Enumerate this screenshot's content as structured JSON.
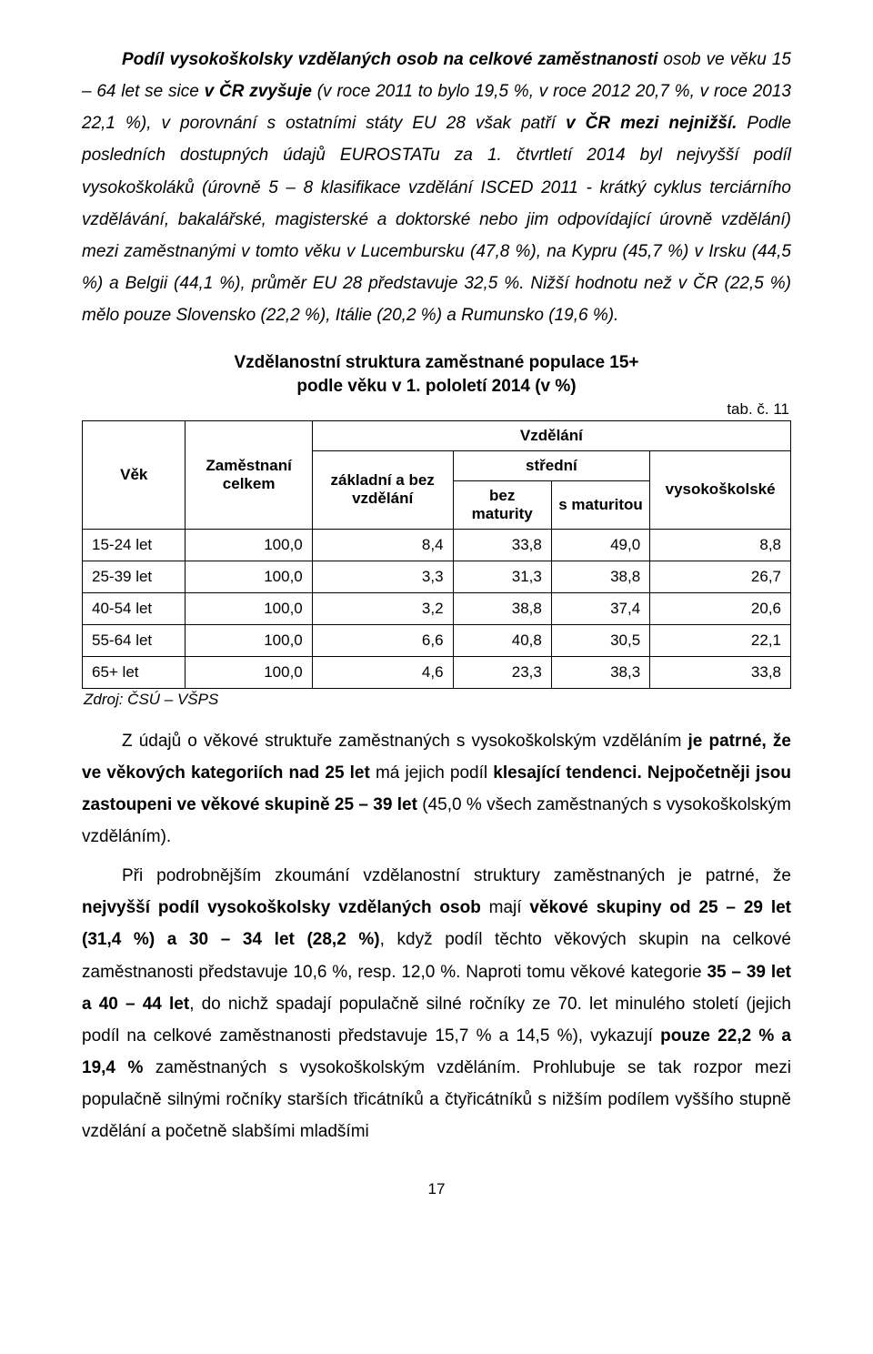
{
  "page_number": "17",
  "paragraphs": {
    "p1_a": "Podíl vysokoškolsky vzdělaných osob na celkové zaměstnanosti",
    "p1_b": " osob ve věku 15 – 64 let se sice ",
    "p1_c": "v ČR zvyšuje",
    "p1_d": " (v roce 2011 to bylo 19,5 %, v roce 2012 20,7 %, v roce 2013 22,1 %), v porovnání s ostatními státy EU 28 však patří ",
    "p1_e": "v ČR mezi nejnižší.",
    "p1_f": " Podle posledních dostupných údajů EUROSTATu za 1. čtvrtletí 2014 byl nejvyšší podíl vysokoškoláků (úrovně 5 – 8 klasifikace vzdělání ISCED 2011 - krátký cyklus terciárního vzdělávání, bakalářské, magisterské a doktorské nebo jim odpovídající úrovně vzdělání) mezi zaměstnanými v tomto věku v Lucembursku (47,8 %), na Kypru (45,7 %) v Irsku (44,5 %) a Belgii (44,1 %), průměr EU 28 představuje 32,5 %. Nižší hodnotu než v ČR (22,5 %) mělo pouze Slovensko (22,2 %), Itálie (20,2 %) a Rumunsko (19,6 %).",
    "p2_a": "Z údajů o věkové struktuře zaměstnaných s vysokoškolským vzděláním ",
    "p2_b": "je patrné, že ve věkových kategoriích nad 25 let",
    "p2_c": " má jejich podíl ",
    "p2_d": "klesající tendenci. Nejpočetněji jsou zastoupeni ve věkové skupině 25 – 39 let",
    "p2_e": " (45,0 % všech zaměstnaných s vysokoškolským vzděláním).",
    "p3_a": "Při podrobnějším zkoumání vzdělanostní struktury zaměstnaných je patrné, že ",
    "p3_b": "nejvyšší podíl vysokoškolsky vzdělaných osob",
    "p3_c": " mají ",
    "p3_d": "věkové skupiny od 25 – 29 let (31,4 %) a 30 – 34 let (28,2 %)",
    "p3_e": ", když podíl těchto věkových skupin na celkové zaměstnanosti představuje 10,6 %, resp. 12,0 %. Naproti tomu věkové kategorie ",
    "p3_f": "35 – 39 let a 40 – 44 let",
    "p3_g": ", do nichž spadají populačně silné ročníky ze 70. let minulého století (jejich podíl na celkové zaměstnanosti představuje 15,7 % a 14,5 %), vykazují ",
    "p3_h": "pouze 22,2 % a 19,4 %",
    "p3_i": " zaměstnaných s vysokoškolským vzděláním. Prohlubuje se tak rozpor mezi populačně silnými ročníky starších třicátníků a čtyřicátníků s nižším podílem vyššího stupně vzdělání a početně slabšími mladšími"
  },
  "table": {
    "title_line1": "Vzdělanostní struktura zaměstnané populace 15+",
    "title_line2": "podle věku v 1. pololetí 2014 (v %)",
    "tab_label": "tab. č. 11",
    "headers": {
      "vek": "Věk",
      "zamestnani": "Zaměstnaní celkem",
      "vzdelani": "Vzdělání",
      "zakladni": "základní a bez vzdělání",
      "stredni": "střední",
      "bez_maturity": "bez maturity",
      "s_maturitou": "s maturitou",
      "vysokoskolske": "vysokoškolské"
    },
    "rows": [
      {
        "vek": "15-24 let",
        "zam": "100,0",
        "zak": "8,4",
        "bez": "33,8",
        "s": "49,0",
        "vys": "8,8"
      },
      {
        "vek": "25-39 let",
        "zam": "100,0",
        "zak": "3,3",
        "bez": "31,3",
        "s": "38,8",
        "vys": "26,7"
      },
      {
        "vek": "40-54 let",
        "zam": "100,0",
        "zak": "3,2",
        "bez": "38,8",
        "s": "37,4",
        "vys": "20,6"
      },
      {
        "vek": "55-64 let",
        "zam": "100,0",
        "zak": "6,6",
        "bez": "40,8",
        "s": "30,5",
        "vys": "22,1"
      },
      {
        "vek": "65+ let",
        "zam": "100,0",
        "zak": "4,6",
        "bez": "23,3",
        "s": "38,3",
        "vys": "33,8"
      }
    ],
    "source": "Zdroj: ČSÚ – VŠPS"
  }
}
